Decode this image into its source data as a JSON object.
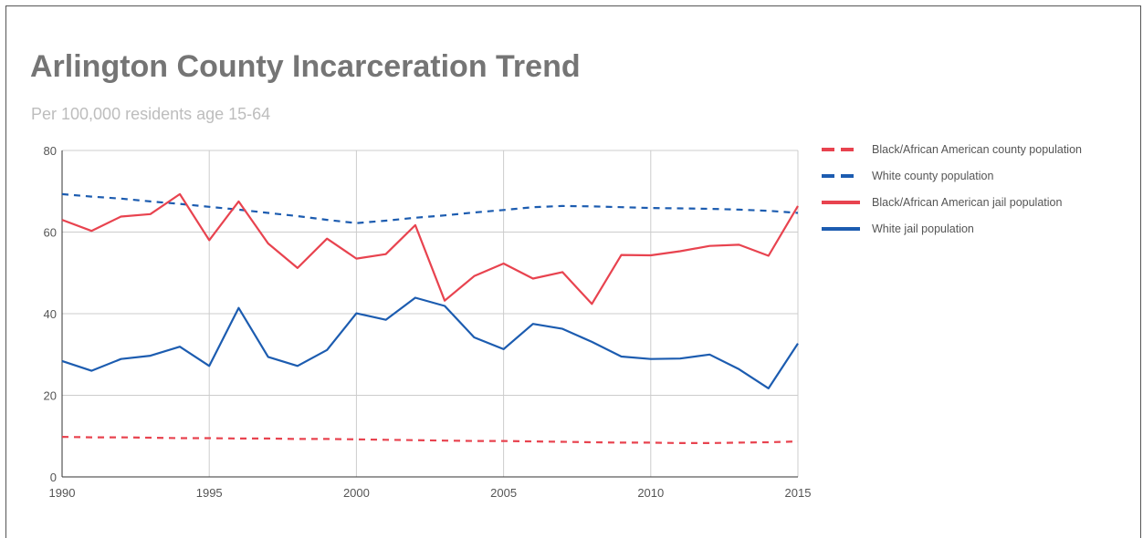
{
  "chart_data": {
    "type": "line",
    "title": "Arlington County Incarceration Trend",
    "subtitle": "Per 100,000 residents age 15-64",
    "xlabel": "",
    "ylabel": "",
    "xlim": [
      1990,
      2015
    ],
    "ylim": [
      0,
      80
    ],
    "x_ticks": [
      1990,
      1995,
      2000,
      2005,
      2010,
      2015
    ],
    "y_ticks": [
      0,
      20,
      40,
      60,
      80
    ],
    "grid": true,
    "legend_position": "right",
    "x": [
      1990,
      1991,
      1992,
      1993,
      1994,
      1995,
      1996,
      1997,
      1998,
      1999,
      2000,
      2001,
      2002,
      2003,
      2004,
      2005,
      2006,
      2007,
      2008,
      2009,
      2010,
      2011,
      2012,
      2013,
      2014,
      2015
    ],
    "series": [
      {
        "name": "Black/African American county population",
        "color": "#e8434f",
        "dash": "dashed",
        "values": [
          9.8,
          9.7,
          9.7,
          9.6,
          9.5,
          9.5,
          9.4,
          9.4,
          9.3,
          9.3,
          9.2,
          9.1,
          9.0,
          8.9,
          8.8,
          8.8,
          8.7,
          8.6,
          8.5,
          8.4,
          8.4,
          8.3,
          8.3,
          8.4,
          8.5,
          8.7
        ]
      },
      {
        "name": "White county population",
        "color": "#1c5cb0",
        "dash": "dashed",
        "values": [
          69.3,
          68.7,
          68.2,
          67.5,
          66.9,
          66.2,
          65.5,
          64.7,
          63.9,
          63.0,
          62.2,
          62.8,
          63.5,
          64.1,
          64.8,
          65.4,
          66.1,
          66.4,
          66.3,
          66.1,
          65.9,
          65.8,
          65.7,
          65.5,
          65.2,
          64.7
        ]
      },
      {
        "name": "Black/African American jail population",
        "color": "#e8434f",
        "dash": "solid",
        "values": [
          63.0,
          60.3,
          63.8,
          64.4,
          69.3,
          58.0,
          67.5,
          57.2,
          51.2,
          58.4,
          53.5,
          54.6,
          61.7,
          43.2,
          49.2,
          52.3,
          48.6,
          50.2,
          42.4,
          54.4,
          54.3,
          55.3,
          56.6,
          56.9,
          54.2,
          66.4
        ]
      },
      {
        "name": "White jail population",
        "color": "#1c5cb0",
        "dash": "solid",
        "values": [
          28.4,
          26.0,
          28.9,
          29.7,
          31.9,
          27.2,
          41.4,
          29.4,
          27.2,
          31.1,
          40.1,
          38.5,
          43.9,
          41.9,
          34.2,
          31.3,
          37.5,
          36.3,
          33.1,
          29.5,
          28.9,
          29.0,
          30.0,
          26.4,
          21.7,
          32.7
        ]
      }
    ]
  }
}
